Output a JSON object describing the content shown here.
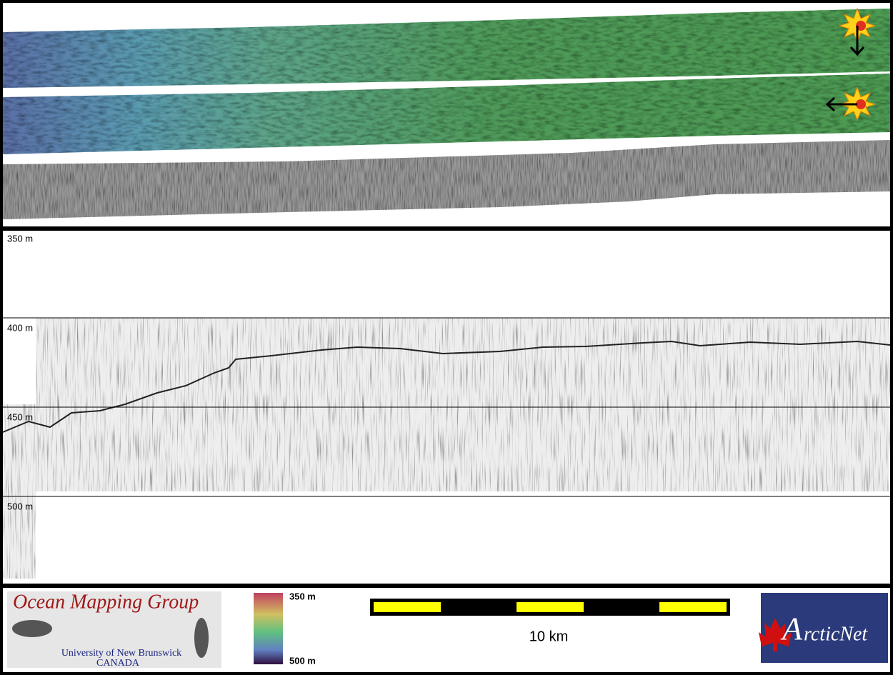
{
  "profile": {
    "depth_labels": [
      "350 m",
      "400 m",
      "450 m",
      "500 m"
    ]
  },
  "footer": {
    "logo": {
      "title": "Ocean Mapping Group",
      "line1": "University of New Brunswick",
      "line2": "CANADA"
    },
    "colorbar": {
      "top_label": "350 m",
      "bottom_label": "500 m"
    },
    "scale_bar": {
      "label": "10 km"
    },
    "partner_logo": {
      "initial": "A",
      "rest": "rcticNet"
    }
  }
}
